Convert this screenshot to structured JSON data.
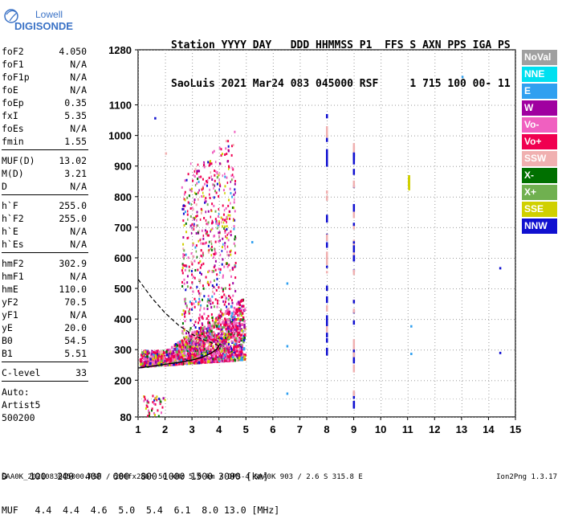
{
  "logo": {
    "line1": "Lowell",
    "line2": "DIGISONDE"
  },
  "header": {
    "row1": "Station YYYY DAY   DDD HHMMSS P1  FFS S AXN PPS IGA PS",
    "row2": "SaoLuis 2021 Mar24 083 045000 RSF     1 715 100 00- 11"
  },
  "params": [
    {
      "k": "foF2",
      "v": "4.050"
    },
    {
      "k": "foF1",
      "v": "N/A"
    },
    {
      "k": "foF1p",
      "v": "N/A"
    },
    {
      "k": "foE",
      "v": "N/A"
    },
    {
      "k": "foEp",
      "v": "0.35"
    },
    {
      "k": "fxI",
      "v": "5.35"
    },
    {
      "k": "foEs",
      "v": "N/A"
    },
    {
      "k": "fmin",
      "v": "1.55"
    },
    {
      "sep": true
    },
    {
      "k": "MUF(D)",
      "v": "13.02"
    },
    {
      "k": "M(D)",
      "v": "3.21"
    },
    {
      "k": "D",
      "v": "N/A"
    },
    {
      "sep": true
    },
    {
      "k": "h`F",
      "v": "255.0"
    },
    {
      "k": "h`F2",
      "v": "255.0"
    },
    {
      "k": "h`E",
      "v": "N/A"
    },
    {
      "k": "h`Es",
      "v": "N/A"
    },
    {
      "sep": true
    },
    {
      "k": "hmF2",
      "v": "302.9"
    },
    {
      "k": "hmF1",
      "v": "N/A"
    },
    {
      "k": "hmE",
      "v": "110.0"
    },
    {
      "k": "yF2",
      "v": "70.5"
    },
    {
      "k": "yF1",
      "v": "N/A"
    },
    {
      "k": "yE",
      "v": "20.0"
    },
    {
      "k": "B0",
      "v": "54.5"
    },
    {
      "k": "B1",
      "v": "5.51"
    },
    {
      "sep": true
    },
    {
      "k": "C-level",
      "v": "33"
    },
    {
      "sep": true
    }
  ],
  "auto": {
    "line1": "Auto:",
    "line2": "Artist5",
    "line3": "500200"
  },
  "footer": {
    "row1": "D    100  200  400  600  800 1000 1500 3000 [km]",
    "row2": "MUF   4.4  4.4  4.6  5.0  5.4  6.1  8.0 13.0 [MHz]"
  },
  "bottom": {
    "file": "SAA0K_2021083045000.RSF / 280fx256h 50 kHz 5.0 km / DPS-4 SAA0K 903 / 2.6 S 315.8 E",
    "version": "Ion2Png 1.3.17"
  },
  "legend": [
    {
      "label": "NoVal",
      "color": "#a0a0a0"
    },
    {
      "label": "NNE",
      "color": "#00e0f0"
    },
    {
      "label": "E",
      "color": "#30a0f0"
    },
    {
      "label": "W",
      "color": "#a000a0"
    },
    {
      "label": "Vo-",
      "color": "#f060c0"
    },
    {
      "label": "Vo+",
      "color": "#f00050"
    },
    {
      "label": "SSW",
      "color": "#f0b0b0"
    },
    {
      "label": "X-",
      "color": "#007000"
    },
    {
      "label": "X+",
      "color": "#70b050"
    },
    {
      "label": "SSE",
      "color": "#d0d000"
    },
    {
      "label": "NNW",
      "color": "#1010d0"
    }
  ],
  "chart_data": {
    "type": "scatter",
    "xlim": [
      1,
      15
    ],
    "ylim": [
      80,
      1280
    ],
    "x_ticks": [
      1,
      2,
      3,
      4,
      5,
      6,
      7,
      8,
      9,
      10,
      11,
      12,
      13,
      14,
      15
    ],
    "y_ticks": [
      80,
      200,
      300,
      400,
      500,
      600,
      700,
      800,
      900,
      1000,
      1100,
      1280
    ],
    "grid": true,
    "traces": {
      "profile": [
        [
          1,
          240
        ],
        [
          1.5,
          246
        ],
        [
          2,
          252
        ],
        [
          2.5,
          258
        ],
        [
          3,
          266
        ],
        [
          3.4,
          276
        ],
        [
          3.7,
          288
        ],
        [
          3.9,
          300
        ],
        [
          4.05,
          320
        ]
      ],
      "o_trace": [
        [
          1,
          530
        ],
        [
          1.5,
          470
        ],
        [
          2,
          420
        ],
        [
          2.5,
          380
        ],
        [
          3,
          350
        ],
        [
          3.5,
          330
        ],
        [
          3.8,
          320
        ],
        [
          4.05,
          310
        ]
      ]
    },
    "echo_clusters": [
      {
        "x": [
          1.05,
          4.95
        ],
        "y": [
          250,
          520
        ],
        "note": "dense F-region echoes"
      },
      {
        "x": [
          2.5,
          4.7
        ],
        "y": [
          300,
          900
        ],
        "note": "spread F"
      }
    ],
    "vertical_streaks": [
      {
        "x": 8.0,
        "y": [
          300,
          1100
        ]
      },
      {
        "x": 9.0,
        "y": [
          130,
          1000
        ]
      },
      {
        "x": 11.05,
        "y": [
          840,
          870
        ]
      }
    ]
  }
}
